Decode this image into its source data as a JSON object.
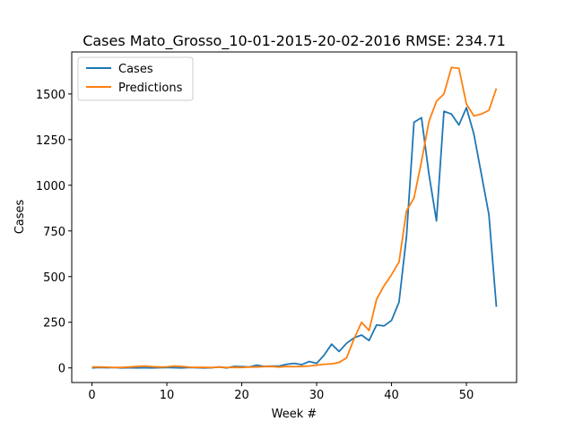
{
  "chart_data": {
    "type": "line",
    "title": "Cases Mato_Grosso_10-01-2015-20-02-2016 RMSE: 234.71",
    "xlabel": "Week #",
    "ylabel": "Cases",
    "xlim": [
      -2.7,
      56.7
    ],
    "ylim": [
      -80,
      1730
    ],
    "xticks": [
      0,
      10,
      20,
      30,
      40,
      50
    ],
    "yticks": [
      0,
      250,
      500,
      750,
      1000,
      1250,
      1500
    ],
    "grid": false,
    "legend_position": "top-left",
    "series": [
      {
        "name": "Cases",
        "color": "#1f77b4",
        "x": [
          0,
          1,
          2,
          3,
          4,
          5,
          6,
          7,
          8,
          9,
          10,
          11,
          12,
          13,
          14,
          15,
          16,
          17,
          18,
          19,
          20,
          21,
          22,
          23,
          24,
          25,
          26,
          27,
          28,
          29,
          30,
          31,
          32,
          33,
          34,
          35,
          36,
          37,
          38,
          39,
          40,
          41,
          42,
          43,
          44,
          45,
          46,
          47,
          48,
          49,
          50,
          51,
          52,
          53,
          54
        ],
        "values": [
          0,
          2,
          1,
          2,
          0,
          1,
          0,
          1,
          0,
          1,
          2,
          1,
          0,
          2,
          1,
          0,
          1,
          5,
          0,
          8,
          7,
          5,
          15,
          8,
          10,
          10,
          20,
          25,
          18,
          35,
          25,
          70,
          130,
          90,
          135,
          165,
          180,
          150,
          235,
          230,
          260,
          360,
          720,
          1345,
          1370,
          1060,
          805,
          1405,
          1390,
          1330,
          1425,
          1280,
          1060,
          840,
          335
        ]
      },
      {
        "name": "Predictions",
        "color": "#ff7f0e",
        "x": [
          0,
          1,
          2,
          3,
          4,
          5,
          6,
          7,
          8,
          9,
          10,
          11,
          12,
          13,
          14,
          15,
          16,
          17,
          18,
          19,
          20,
          21,
          22,
          23,
          24,
          25,
          26,
          27,
          28,
          29,
          30,
          31,
          32,
          33,
          34,
          35,
          36,
          37,
          38,
          39,
          40,
          41,
          42,
          43,
          44,
          45,
          46,
          47,
          48,
          49,
          50,
          51,
          52,
          53,
          54
        ],
        "values": [
          5,
          5,
          4,
          2,
          3,
          5,
          8,
          10,
          7,
          5,
          6,
          10,
          8,
          4,
          3,
          3,
          2,
          5,
          2,
          3,
          2,
          5,
          5,
          7,
          8,
          5,
          8,
          7,
          8,
          10,
          15,
          20,
          22,
          30,
          55,
          160,
          250,
          205,
          375,
          450,
          510,
          580,
          860,
          930,
          1130,
          1350,
          1460,
          1500,
          1645,
          1640,
          1445,
          1380,
          1390,
          1410,
          1530
        ]
      }
    ]
  }
}
